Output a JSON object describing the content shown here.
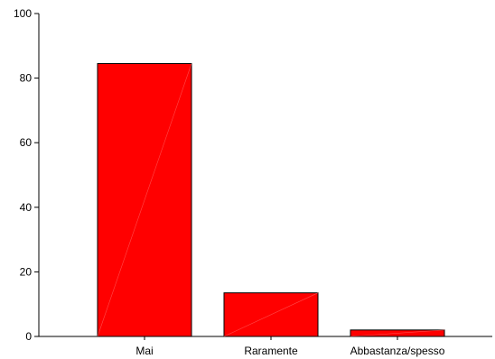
{
  "chart_data": {
    "type": "bar",
    "categories": [
      "Mai",
      "Raramente",
      "Abbastanza/spesso"
    ],
    "values": [
      84.5,
      13.5,
      2.0
    ],
    "title": "",
    "xlabel": "",
    "ylabel": "",
    "ylim": [
      0,
      100
    ],
    "yticks": [
      "0",
      "20",
      "40",
      "60",
      "80",
      "100"
    ],
    "grid": false,
    "legend": "none",
    "bar_color": "#ff0000",
    "bar_edge_color": "#000000"
  }
}
